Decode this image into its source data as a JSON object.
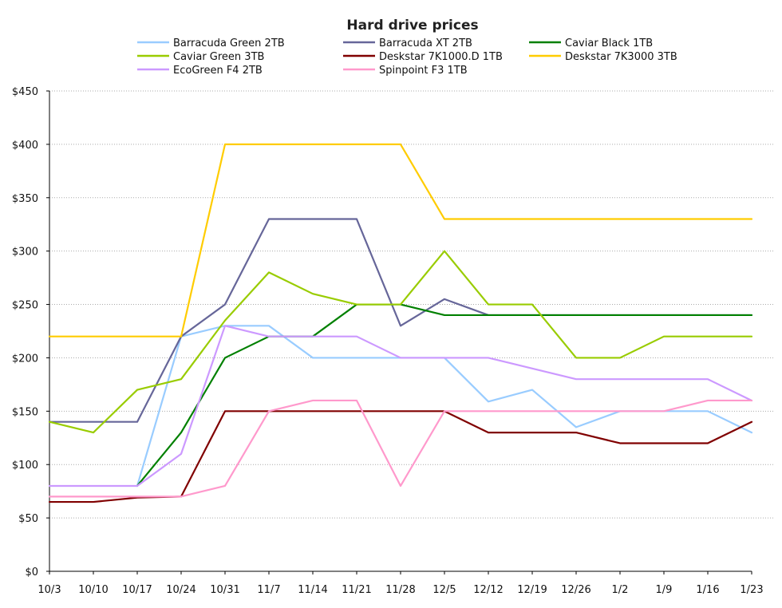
{
  "chart_data": {
    "type": "line",
    "title": "Hard drive prices",
    "xlabel": "",
    "ylabel": "",
    "x": [
      "10/3",
      "10/10",
      "10/17",
      "10/24",
      "10/31",
      "11/7",
      "11/14",
      "11/21",
      "11/28",
      "12/5",
      "12/12",
      "12/19",
      "12/26",
      "1/2",
      "1/9",
      "1/16",
      "1/23"
    ],
    "ylim": [
      0,
      450
    ],
    "yticks": [
      0,
      50,
      100,
      150,
      200,
      250,
      300,
      350,
      400,
      450
    ],
    "ytick_labels": [
      "$0",
      "$50",
      "$100",
      "$150",
      "$200",
      "$250",
      "$300",
      "$350",
      "$400",
      "$450"
    ],
    "grid": "horizontal",
    "legend_position": "top",
    "series": [
      {
        "name": "Barracuda Green 2TB",
        "color": "#99ccff",
        "values": [
          null,
          null,
          80,
          220,
          230,
          230,
          200,
          200,
          200,
          200,
          159,
          170,
          135,
          150,
          150,
          150,
          130
        ]
      },
      {
        "name": "Barracuda XT 2TB",
        "color": "#666699",
        "values": [
          140,
          140,
          140,
          220,
          250,
          330,
          330,
          330,
          230,
          255,
          240,
          240,
          240,
          240,
          240,
          240,
          240
        ]
      },
      {
        "name": "Caviar Black 1TB",
        "color": "#008000",
        "values": [
          null,
          null,
          80,
          130,
          200,
          220,
          220,
          250,
          250,
          240,
          240,
          240,
          240,
          240,
          240,
          240,
          240
        ]
      },
      {
        "name": "Caviar Green 3TB",
        "color": "#99cc00",
        "values": [
          140,
          130,
          170,
          180,
          235,
          280,
          260,
          250,
          250,
          300,
          250,
          250,
          200,
          200,
          220,
          220,
          220
        ]
      },
      {
        "name": "Deskstar 7K1000.D 1TB",
        "color": "#800000",
        "values": [
          65,
          65,
          69,
          70,
          150,
          150,
          150,
          150,
          150,
          150,
          130,
          130,
          130,
          120,
          120,
          120,
          140
        ]
      },
      {
        "name": "Deskstar 7K3000 3TB",
        "color": "#ffcc00",
        "values": [
          220,
          220,
          220,
          220,
          400,
          400,
          400,
          400,
          400,
          330,
          330,
          330,
          330,
          330,
          330,
          330,
          330
        ]
      },
      {
        "name": "EcoGreen F4 2TB",
        "color": "#cc99ff",
        "values": [
          80,
          80,
          80,
          110,
          230,
          220,
          220,
          220,
          200,
          200,
          200,
          190,
          180,
          180,
          180,
          180,
          160
        ]
      },
      {
        "name": "Spinpoint F3 1TB",
        "color": "#ff99cc",
        "values": [
          70,
          70,
          70,
          70,
          80,
          150,
          160,
          160,
          80,
          150,
          150,
          150,
          150,
          150,
          150,
          160,
          160
        ]
      }
    ]
  }
}
